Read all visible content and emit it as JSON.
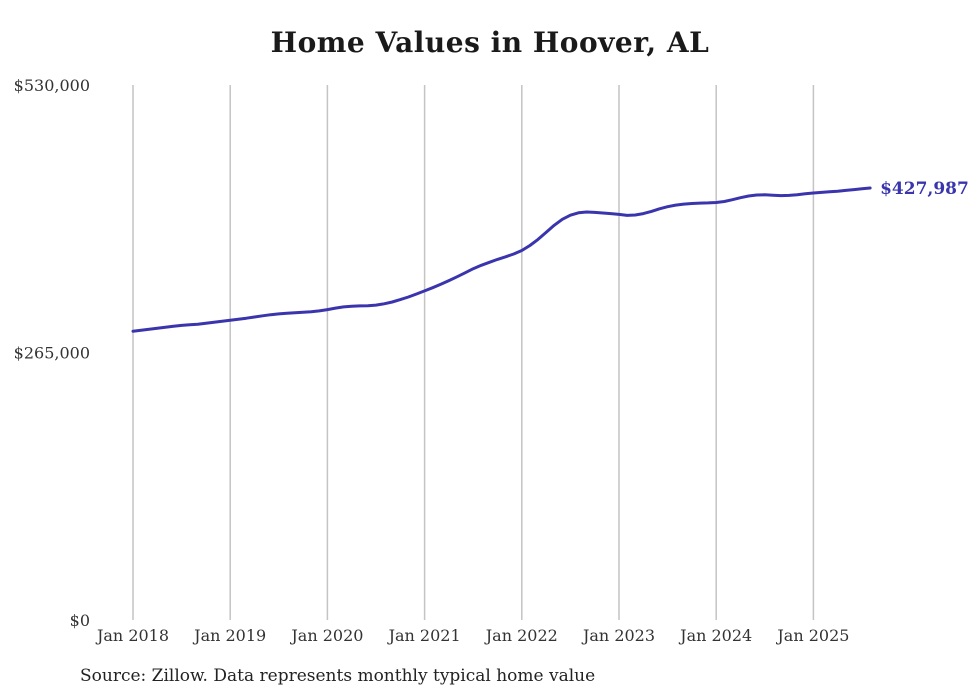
{
  "chart_data": {
    "type": "line",
    "title": "Home Values in Hoover, AL",
    "source_note": "Source: Zillow. Data represents monthly typical home value",
    "end_label": "$427,987",
    "line_color": "#3a35ad",
    "grid_color": "#c4c4c4",
    "axis_text_color": "#333333",
    "ylim": [
      0,
      530000
    ],
    "grid": "vertical-only",
    "y_ticks": [
      {
        "value": 530000,
        "label": "$530,000"
      },
      {
        "value": 265000,
        "label": "$265,000"
      },
      {
        "value": 0,
        "label": "$0"
      }
    ],
    "x_tick_labels": [
      "Jan 2018",
      "Jan 2019",
      "Jan 2020",
      "Jan 2021",
      "Jan 2022",
      "Jan 2023",
      "Jan 2024",
      "Jan 2025"
    ],
    "x": [
      "2018-01",
      "2018-02",
      "2018-03",
      "2018-04",
      "2018-05",
      "2018-06",
      "2018-07",
      "2018-08",
      "2018-09",
      "2018-10",
      "2018-11",
      "2018-12",
      "2019-01",
      "2019-02",
      "2019-03",
      "2019-04",
      "2019-05",
      "2019-06",
      "2019-07",
      "2019-08",
      "2019-09",
      "2019-10",
      "2019-11",
      "2019-12",
      "2020-01",
      "2020-02",
      "2020-03",
      "2020-04",
      "2020-05",
      "2020-06",
      "2020-07",
      "2020-08",
      "2020-09",
      "2020-10",
      "2020-11",
      "2020-12",
      "2021-01",
      "2021-02",
      "2021-03",
      "2021-04",
      "2021-05",
      "2021-06",
      "2021-07",
      "2021-08",
      "2021-09",
      "2021-10",
      "2021-11",
      "2021-12",
      "2022-01",
      "2022-02",
      "2022-03",
      "2022-04",
      "2022-05",
      "2022-06",
      "2022-07",
      "2022-08",
      "2022-09",
      "2022-10",
      "2022-11",
      "2022-12",
      "2023-01",
      "2023-02",
      "2023-03",
      "2023-04",
      "2023-05",
      "2023-06",
      "2023-07",
      "2023-08",
      "2023-09",
      "2023-10",
      "2023-11",
      "2023-12",
      "2024-01",
      "2024-02",
      "2024-03",
      "2024-04",
      "2024-05",
      "2024-06",
      "2024-07",
      "2024-08",
      "2024-09",
      "2024-10",
      "2024-11",
      "2024-12",
      "2025-01",
      "2025-02",
      "2025-03",
      "2025-04",
      "2025-05",
      "2025-06",
      "2025-07",
      "2025-08"
    ],
    "values": [
      286000,
      287000,
      288000,
      289000,
      290000,
      291000,
      291800,
      292400,
      293000,
      294000,
      295000,
      296000,
      297000,
      298000,
      299000,
      300200,
      301400,
      302400,
      303200,
      303800,
      304400,
      304900,
      305400,
      306200,
      307500,
      309000,
      310200,
      310800,
      311200,
      311400,
      312000,
      313200,
      315000,
      317400,
      320000,
      323000,
      326000,
      329200,
      332600,
      336200,
      340000,
      344000,
      348000,
      351400,
      354400,
      357200,
      359800,
      362600,
      366000,
      371000,
      377000,
      384000,
      391000,
      397000,
      401000,
      403400,
      404200,
      403800,
      403200,
      402600,
      401800,
      400800,
      401200,
      402600,
      404800,
      407400,
      409400,
      411000,
      412000,
      412600,
      413000,
      413200,
      413600,
      414600,
      416400,
      418400,
      420000,
      421000,
      421200,
      420800,
      420400,
      420600,
      421200,
      422200,
      423000,
      423600,
      424200,
      424800,
      425600,
      426400,
      427200,
      427987
    ]
  }
}
